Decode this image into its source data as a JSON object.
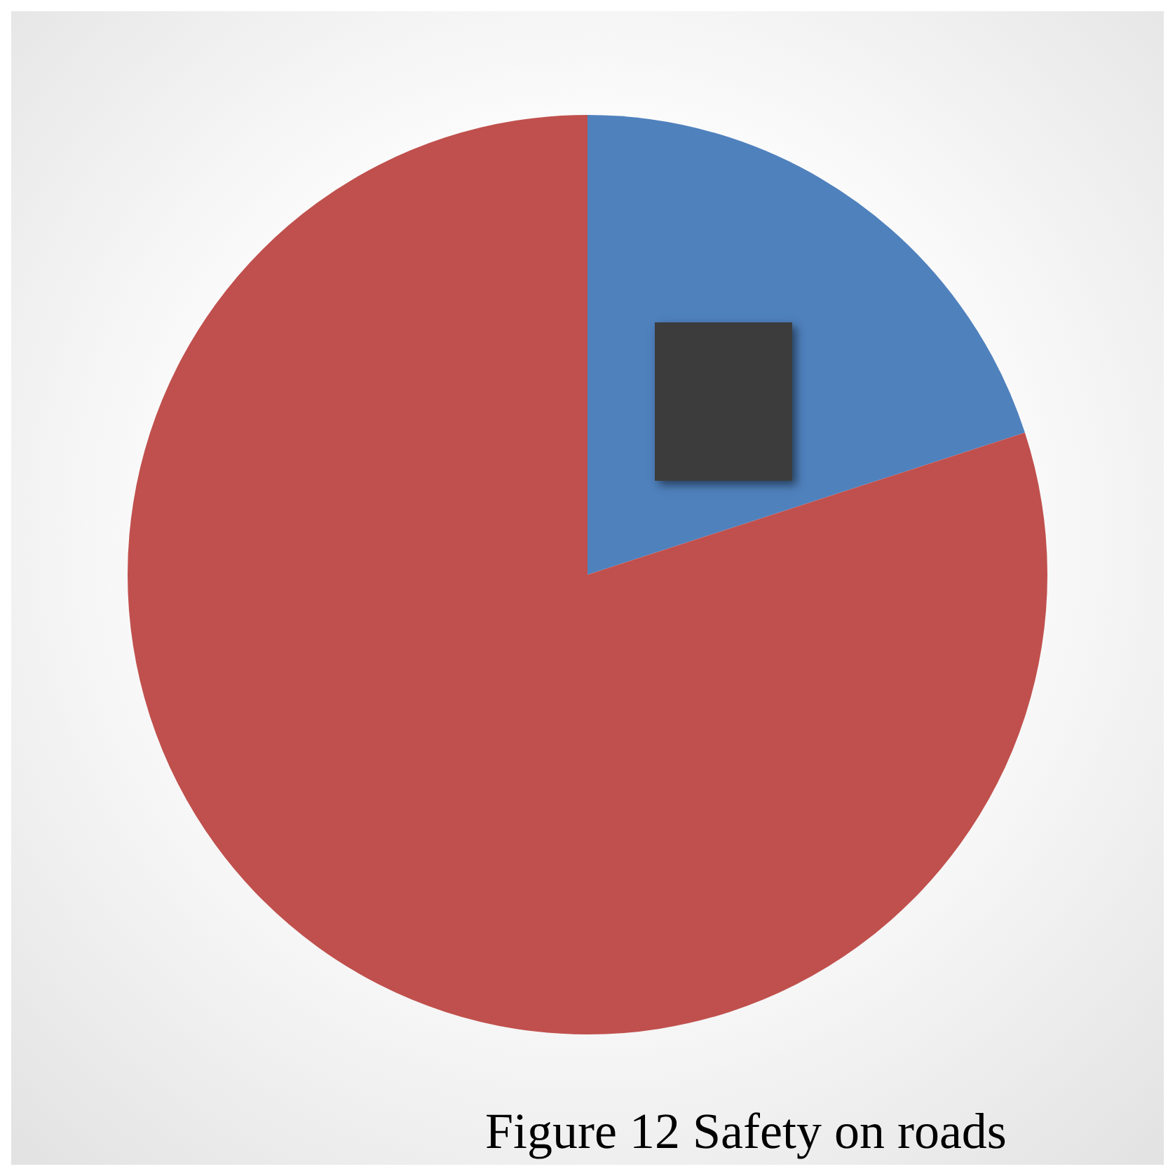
{
  "chart_data": {
    "type": "pie",
    "title": "Figure 12 Safety on roads",
    "categories": [
      null,
      null
    ],
    "values": [
      20,
      80
    ],
    "colors": [
      "#4f81bd",
      "#c0504d"
    ],
    "legend": false
  }
}
